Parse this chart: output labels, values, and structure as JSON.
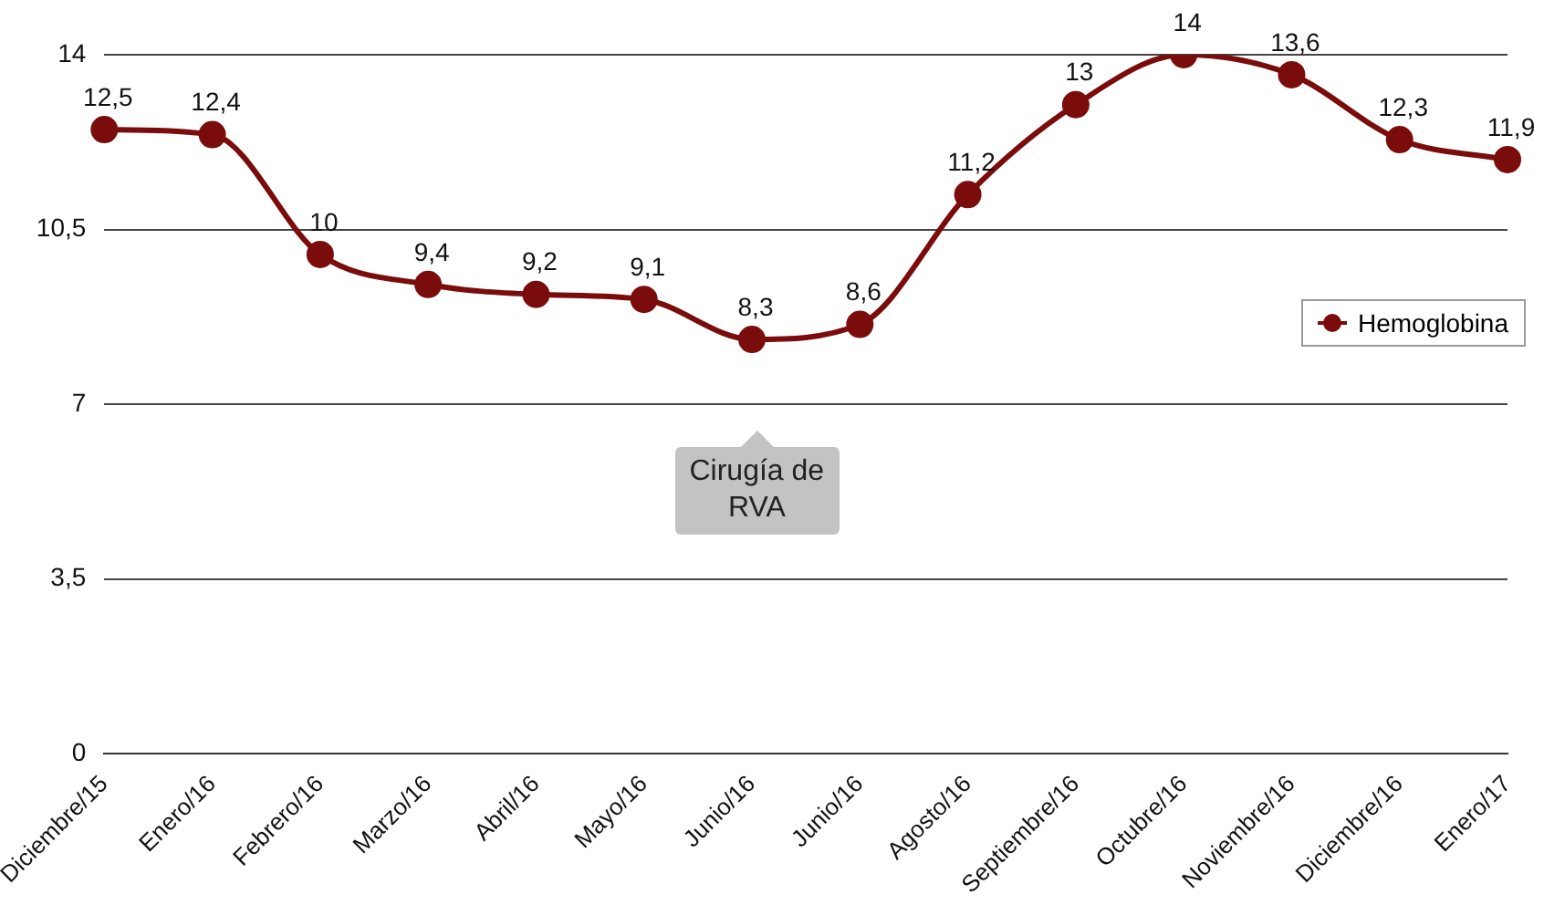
{
  "chart_data": {
    "type": "line",
    "categories": [
      "Diciembre/15",
      "Enero/16",
      "Febrero/16",
      "Marzo/16",
      "Abril/16",
      "Mayo/16",
      "Junio/16",
      "Junio/16",
      "Agosto/16",
      "Septiembre/16",
      "Octubre/16",
      "Noviembre/16",
      "Diciembre/16",
      "Enero/17"
    ],
    "series": [
      {
        "name": "Hemoglobina",
        "color": "#7b0c0c",
        "values": [
          12.5,
          12.4,
          10,
          9.4,
          9.2,
          9.1,
          8.3,
          8.6,
          11.2,
          13,
          14,
          13.6,
          12.3,
          11.9
        ],
        "value_labels": [
          "12,5",
          "12,4",
          "10",
          "9,4",
          "9,2",
          "9,1",
          "8,3",
          "8,6",
          "11,2",
          "13",
          "14",
          "13,6",
          "12,3",
          "11,9"
        ]
      }
    ],
    "ylim": [
      0,
      14
    ],
    "yticks": [
      0,
      {
        "value": 3.5,
        "label": "3,5"
      },
      7,
      {
        "value": 10.5,
        "label": "10,5"
      },
      14
    ],
    "grid": "y",
    "legend": "right",
    "marker": "circle",
    "line_style": "solid",
    "annotations": [
      "Cirugía de RVA"
    ]
  }
}
